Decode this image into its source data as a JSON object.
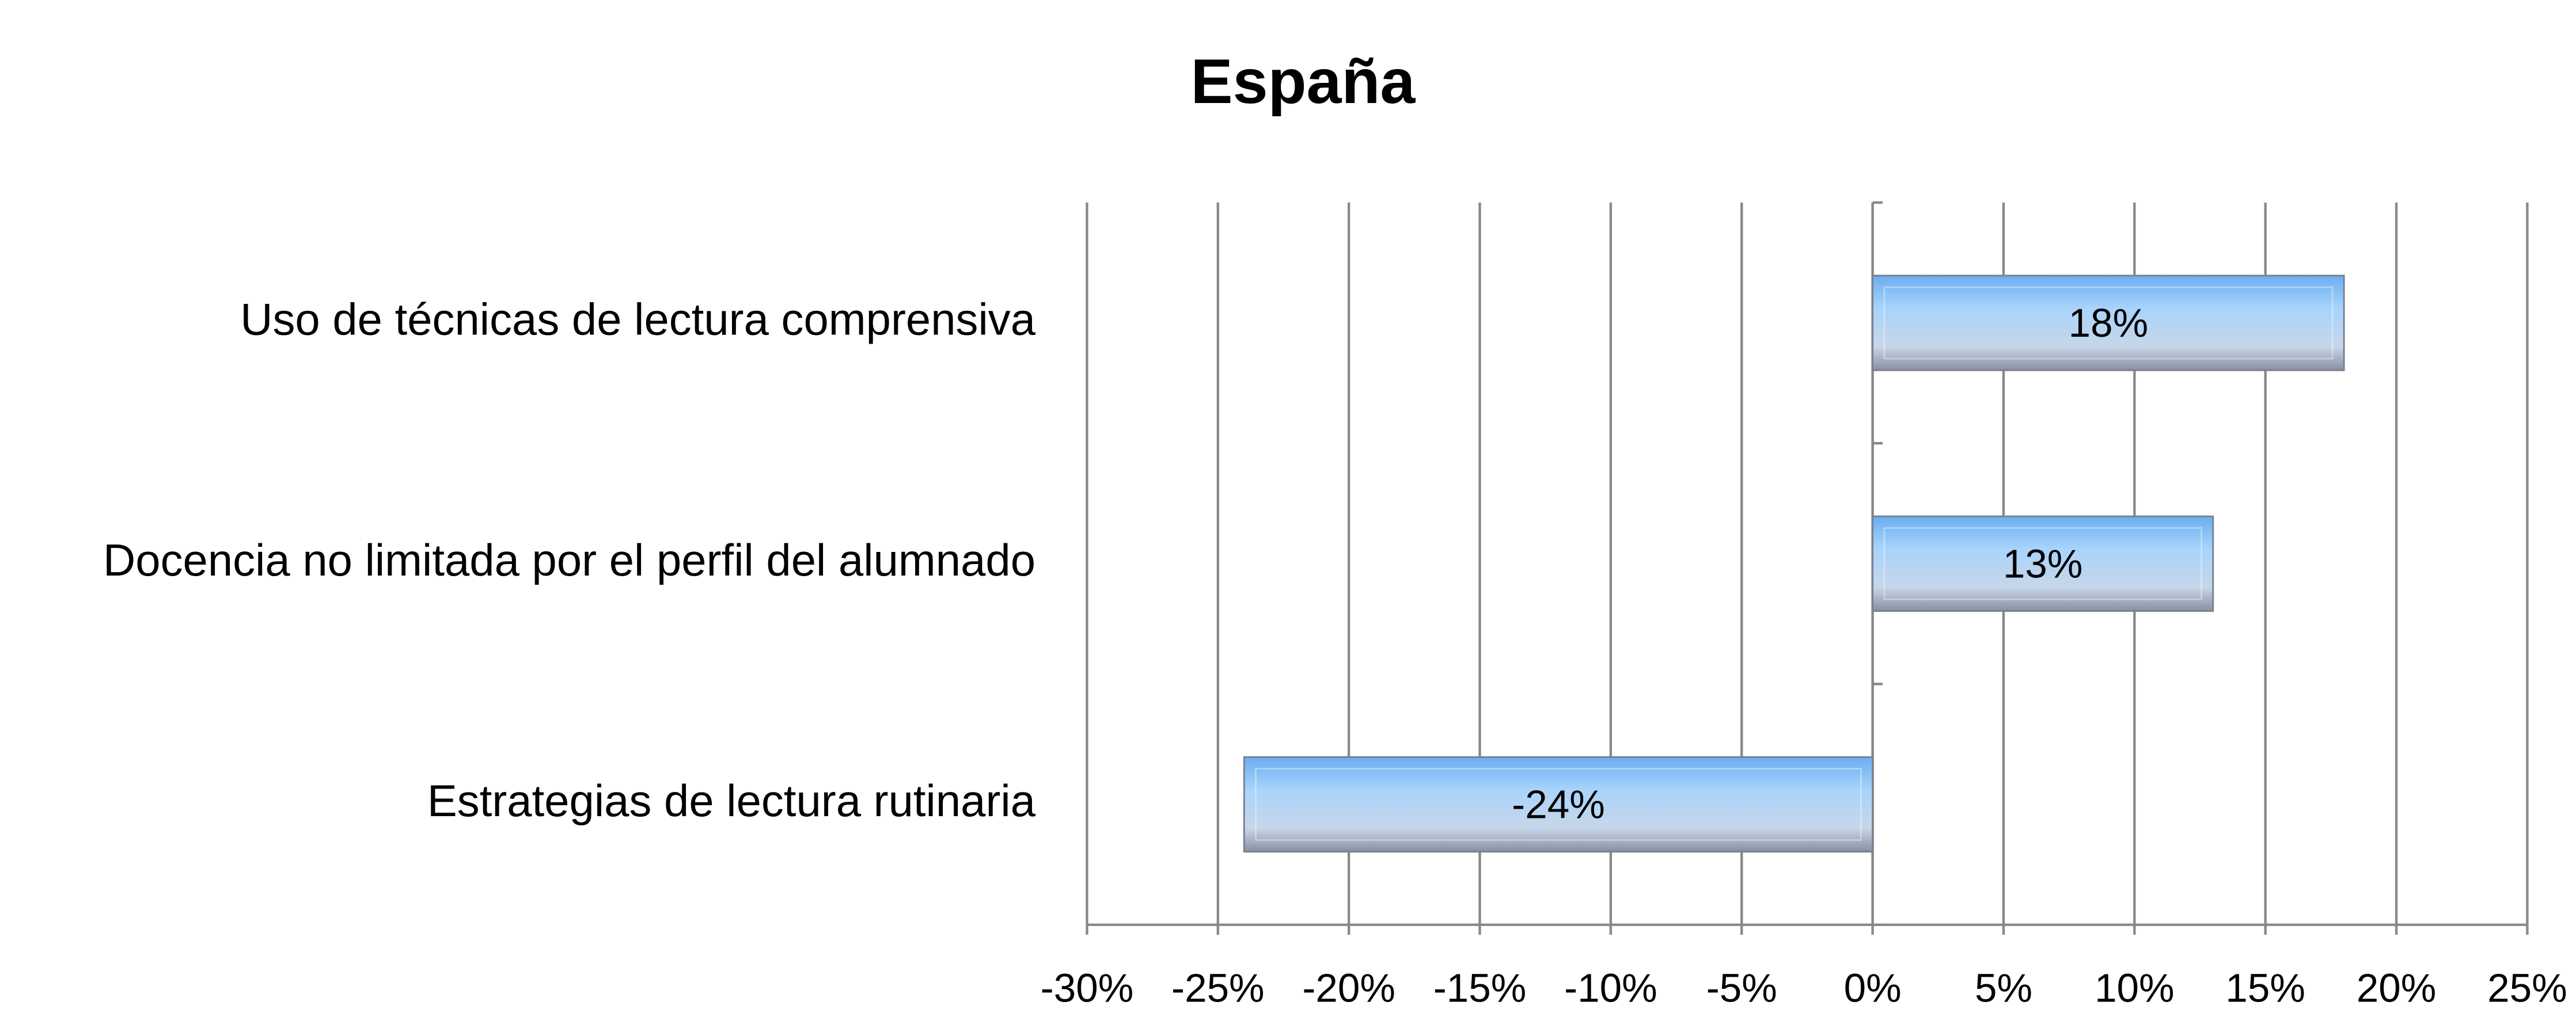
{
  "chart_data": {
    "type": "hbar",
    "title": "España",
    "categories": [
      "Uso de técnicas de lectura comprensiva",
      "Docencia no limitada por el perfil del alumnado",
      "Estrategias de lectura rutinaria"
    ],
    "values": [
      18,
      13,
      -24
    ],
    "value_labels": [
      "18%",
      "13%",
      "-24%"
    ],
    "color": "#6aaef0",
    "xlim": [
      -30,
      25
    ],
    "xticks": [
      {
        "value": -30,
        "label": "-30%"
      },
      {
        "value": -25,
        "label": "-25%"
      },
      {
        "value": -20,
        "label": "-20%"
      },
      {
        "value": -15,
        "label": "-15%"
      },
      {
        "value": -10,
        "label": "-10%"
      },
      {
        "value": -5,
        "label": "-5%"
      },
      {
        "value": 0,
        "label": "0%"
      },
      {
        "value": 5,
        "label": "5%"
      },
      {
        "value": 10,
        "label": "10%"
      },
      {
        "value": 15,
        "label": "15%"
      },
      {
        "value": 20,
        "label": "20%"
      },
      {
        "value": 25,
        "label": "25%"
      }
    ],
    "grid": true
  }
}
